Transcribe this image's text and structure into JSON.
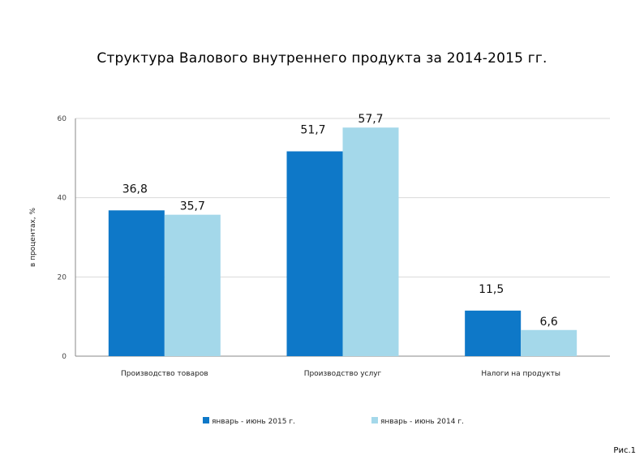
{
  "title": "Структура Валового внутреннего продукта за 2014-2015 гг.",
  "caption": "Рис.1",
  "chart_data": {
    "type": "bar",
    "title": "Структура Валового внутреннего продукта за 2014-2015 гг.",
    "xlabel": "",
    "ylabel": "в процентах, %",
    "ylim": [
      0,
      60
    ],
    "yticks": [
      "0",
      "20",
      "40",
      "60"
    ],
    "grid": true,
    "legend_position": "bottom",
    "categories": [
      "Производство товаров",
      "Производство услуг",
      "Налоги на продукты"
    ],
    "series": [
      {
        "name": "январь - июнь 2015 г.",
        "color": "#0E78C8",
        "values": [
          36.8,
          51.7,
          11.5
        ],
        "labels": [
          "36,8",
          "51,7",
          "11,5"
        ]
      },
      {
        "name": "январь - июнь 2014 г.",
        "color": "#A4D8EA",
        "values": [
          35.7,
          57.7,
          6.6
        ],
        "labels": [
          "35,7",
          "57,7",
          "6,6"
        ]
      }
    ]
  }
}
